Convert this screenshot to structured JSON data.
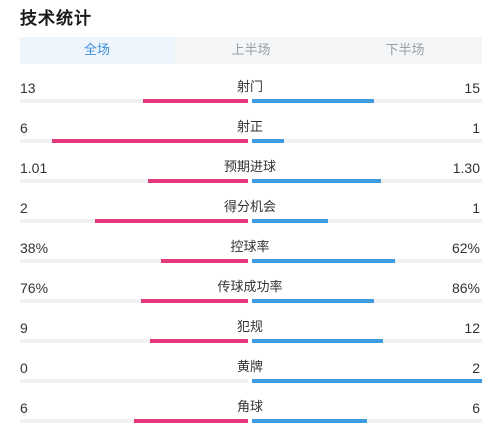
{
  "title": "技术统计",
  "tabs": [
    {
      "label": "全场",
      "active": true
    },
    {
      "label": "上半场",
      "active": false
    },
    {
      "label": "下半场",
      "active": false
    }
  ],
  "colors": {
    "home": "#e23a7c",
    "away": "#3f9ae0",
    "accent": "#3f8fd8"
  },
  "stats": [
    {
      "name": "射门",
      "home": "13",
      "away": "15",
      "home_fill": 0.46,
      "away_fill": 0.53
    },
    {
      "name": "射正",
      "home": "6",
      "away": "1",
      "home_fill": 0.86,
      "away_fill": 0.14
    },
    {
      "name": "预期进球",
      "home": "1.01",
      "away": "1.30",
      "home_fill": 0.44,
      "away_fill": 0.56
    },
    {
      "name": "得分机会",
      "home": "2",
      "away": "1",
      "home_fill": 0.67,
      "away_fill": 0.33
    },
    {
      "name": "控球率",
      "home": "38%",
      "away": "62%",
      "home_fill": 0.38,
      "away_fill": 0.62
    },
    {
      "name": "传球成功率",
      "home": "76%",
      "away": "86%",
      "home_fill": 0.47,
      "away_fill": 0.53
    },
    {
      "name": "犯规",
      "home": "9",
      "away": "12",
      "home_fill": 0.43,
      "away_fill": 0.57
    },
    {
      "name": "黄牌",
      "home": "0",
      "away": "2",
      "home_fill": 0.0,
      "away_fill": 1.0
    },
    {
      "name": "角球",
      "home": "6",
      "away": "6",
      "home_fill": 0.5,
      "away_fill": 0.5
    }
  ]
}
